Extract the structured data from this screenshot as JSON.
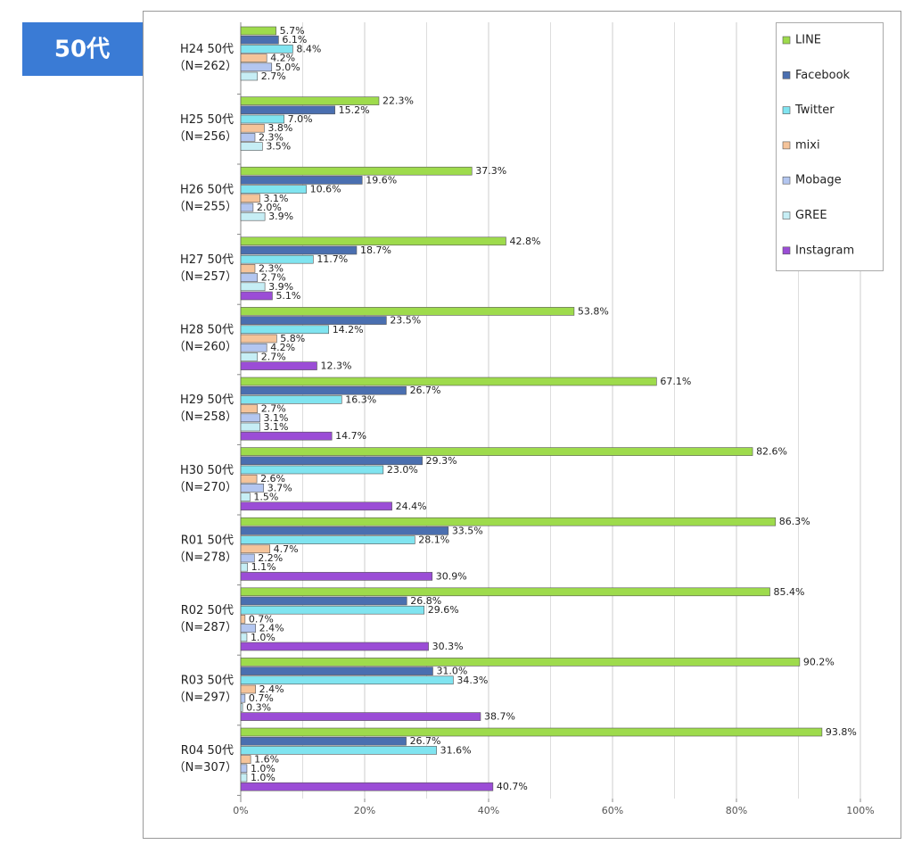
{
  "chart_data": {
    "type": "hbar",
    "title": "50代",
    "categories": [
      "H24 50代",
      "H25 50代",
      "H26 50代",
      "H27 50代",
      "H28 50代",
      "H29 50代",
      "H30 50代",
      "R01 50代",
      "R02 50代",
      "R03 50代",
      "R04 50代"
    ],
    "category_n": [
      "（N=262）",
      "（N=256）",
      "（N=255）",
      "（N=257）",
      "（N=260）",
      "（N=258）",
      "（N=270）",
      "（N=278）",
      "（N=287）",
      "（N=297）",
      "（N=307）"
    ],
    "series": [
      {
        "name": "LINE",
        "color": "#9edb4c",
        "values": [
          5.7,
          22.3,
          37.3,
          42.8,
          53.8,
          67.1,
          82.6,
          86.3,
          85.4,
          90.2,
          93.8
        ],
        "value_labels": [
          "5.7%",
          "22.3%",
          "37.3%",
          "42.8%",
          "53.8%",
          "67.1%",
          "82.6%",
          "86.3%",
          "85.4%",
          "90.2%",
          "93.8%"
        ]
      },
      {
        "name": "Facebook",
        "color": "#4a6fb0",
        "values": [
          6.1,
          15.2,
          19.6,
          18.7,
          23.5,
          26.7,
          29.3,
          33.5,
          26.8,
          31.0,
          26.7
        ],
        "value_labels": [
          "6.1%",
          "15.2%",
          "19.6%",
          "18.7%",
          "23.5%",
          "26.7%",
          "29.3%",
          "33.5%",
          "26.8%",
          "31.0%",
          "26.7%"
        ]
      },
      {
        "name": "Twitter",
        "color": "#80e4f0",
        "values": [
          8.4,
          7.0,
          10.6,
          11.7,
          14.2,
          16.3,
          23.0,
          28.1,
          29.6,
          34.3,
          31.6
        ],
        "value_labels": [
          "8.4%",
          "7.0%",
          "10.6%",
          "11.7%",
          "14.2%",
          "16.3%",
          "23.0%",
          "28.1%",
          "29.6%",
          "34.3%",
          "31.6%"
        ]
      },
      {
        "name": "mixi",
        "color": "#f5c49a",
        "values": [
          4.2,
          3.8,
          3.1,
          2.3,
          5.8,
          2.7,
          2.6,
          4.7,
          0.7,
          2.4,
          1.6
        ],
        "value_labels": [
          "4.2%",
          "3.8%",
          "3.1%",
          "2.3%",
          "5.8%",
          "2.7%",
          "2.6%",
          "4.7%",
          "0.7%",
          "2.4%",
          "1.6%"
        ]
      },
      {
        "name": "Mobage",
        "color": "#b3c6f0",
        "values": [
          5.0,
          2.3,
          2.0,
          2.7,
          4.2,
          3.1,
          3.7,
          2.2,
          2.4,
          0.7,
          1.0
        ],
        "value_labels": [
          "5.0%",
          "2.3%",
          "2.0%",
          "2.7%",
          "4.2%",
          "3.1%",
          "3.7%",
          "2.2%",
          "2.4%",
          "0.7%",
          "1.0%"
        ]
      },
      {
        "name": "GREE",
        "color": "#c6eef5",
        "values": [
          2.7,
          3.5,
          3.9,
          3.9,
          2.7,
          3.1,
          1.5,
          1.1,
          1.0,
          0.3,
          1.0
        ],
        "value_labels": [
          "2.7%",
          "3.5%",
          "3.9%",
          "3.9%",
          "2.7%",
          "3.1%",
          "1.5%",
          "1.1%",
          "1.0%",
          "0.3%",
          "1.0%"
        ]
      },
      {
        "name": "Instagram",
        "color": "#9b4dd6",
        "values": [
          null,
          null,
          null,
          5.1,
          12.3,
          14.7,
          24.4,
          30.9,
          30.3,
          38.7,
          40.7
        ],
        "value_labels": [
          null,
          null,
          null,
          "5.1%",
          "12.3%",
          "14.7%",
          "24.4%",
          "30.9%",
          "30.3%",
          "38.7%",
          "40.7%"
        ]
      }
    ],
    "xlim": [
      0,
      100
    ],
    "xticks": [
      {
        "value": 0,
        "label": "0%"
      },
      {
        "value": 20,
        "label": "20%"
      },
      {
        "value": 40,
        "label": "40%"
      },
      {
        "value": 60,
        "label": "60%"
      },
      {
        "value": 80,
        "label": "80%"
      },
      {
        "value": 100,
        "label": "100%"
      }
    ],
    "minor_grid": [
      10,
      30,
      50,
      70,
      90
    ],
    "grid": true,
    "legend": "top-right"
  }
}
